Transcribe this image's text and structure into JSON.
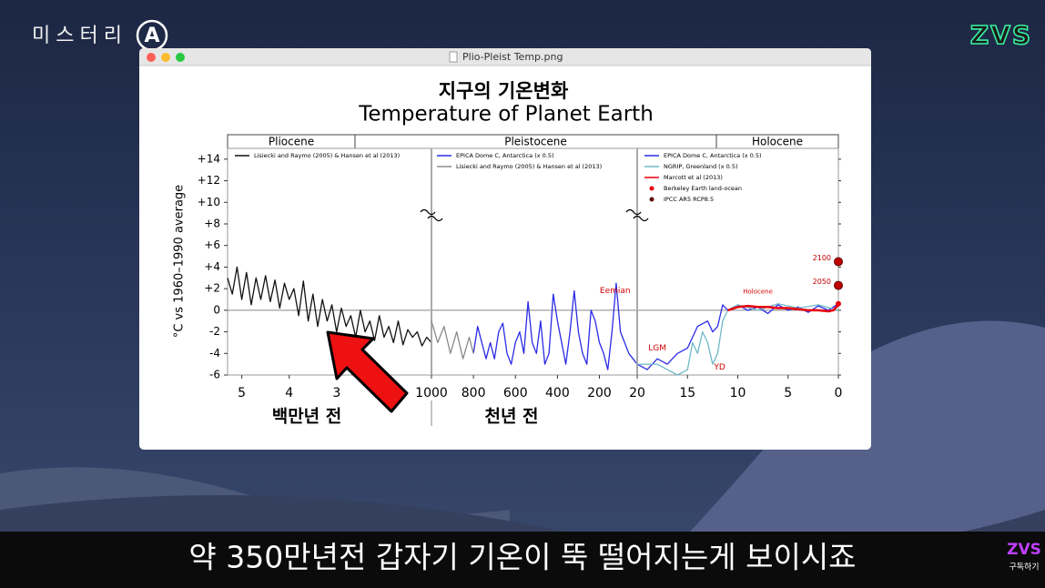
{
  "overlay": {
    "channel": "미스터리",
    "channel_badge": "A",
    "logo": "ZVS",
    "subscribe_logo": "ZVS",
    "subscribe_label": "구독하기",
    "caption": "약 350만년전 갑자기 기온이 뚝 떨어지는게 보이시죠"
  },
  "window": {
    "title": "Plio-Pleist Temp.png"
  },
  "chart_data": {
    "type": "line",
    "title": "지구의 기온변화",
    "subtitle": "Temperature of Planet Earth",
    "y_label": "°C vs 1960–1990 average",
    "epochs": [
      "Pliocene",
      "Pleistocene",
      "Holocene"
    ],
    "ylim": [
      -6,
      15
    ],
    "yticks": [
      {
        "value": 14,
        "label": "+14"
      },
      {
        "value": 12,
        "label": "+12"
      },
      {
        "value": 10,
        "label": "+10"
      },
      {
        "value": 8,
        "label": "+8"
      },
      {
        "value": 6,
        "label": "+6"
      },
      {
        "value": 4,
        "label": "+4"
      },
      {
        "value": 2,
        "label": "+2"
      },
      0,
      -2,
      -4,
      -6
    ],
    "panels": [
      {
        "x_label": "백만년 전",
        "xlim": [
          5.3,
          1.0
        ],
        "xticks": [
          5,
          4,
          3
        ],
        "series": [
          {
            "name": "Lisiecki and Raymo (2005) & Hansen et al (2013)",
            "color": "#111111",
            "x": [
              5.3,
              5.2,
              5.1,
              5.0,
              4.9,
              4.8,
              4.7,
              4.6,
              4.5,
              4.4,
              4.3,
              4.2,
              4.1,
              4.0,
              3.9,
              3.8,
              3.7,
              3.6,
              3.5,
              3.4,
              3.3,
              3.2,
              3.1,
              3.0,
              2.9,
              2.8,
              2.7,
              2.6,
              2.5,
              2.4,
              2.3,
              2.2,
              2.1,
              2.0,
              1.9,
              1.8,
              1.7,
              1.6,
              1.5,
              1.4,
              1.3,
              1.2,
              1.1,
              1.0
            ],
            "values": [
              3,
              1.5,
              4,
              1,
              3.5,
              0.5,
              3,
              1,
              3.2,
              0.8,
              2.8,
              0.2,
              2.5,
              1,
              2,
              -0.5,
              2.7,
              -1,
              1.5,
              -1.5,
              1,
              -1,
              0.5,
              -2,
              0.2,
              -1.5,
              -0.5,
              -2.5,
              0,
              -2,
              -1,
              -2.8,
              -0.5,
              -2.5,
              -1.5,
              -3,
              -1,
              -3.2,
              -1.8,
              -2.5,
              -2,
              -3.3,
              -2.5,
              -3
            ]
          }
        ]
      },
      {
        "x_label": "천년 전",
        "xlim": [
          1000,
          20
        ],
        "xticks": [
          1000,
          800,
          600,
          400,
          200
        ],
        "series": [
          {
            "name": "EPICA Dome C, Antarctica (x 0.5)",
            "color": "#2b2be6",
            "x": [
              800,
              780,
              760,
              740,
              720,
              700,
              680,
              660,
              640,
              620,
              600,
              580,
              560,
              540,
              520,
              500,
              480,
              460,
              440,
              420,
              400,
              380,
              360,
              340,
              320,
              300,
              280,
              260,
              240,
              220,
              200,
              180,
              160,
              140,
              120,
              100,
              80,
              60,
              40,
              20
            ],
            "values": [
              -4,
              -1.5,
              -3,
              -4.5,
              -3,
              -4.5,
              -2,
              -1.2,
              -4,
              -5,
              -3,
              -2,
              -4,
              0.8,
              -3,
              -4,
              -1,
              -5,
              -4,
              1.5,
              -1,
              -3,
              -5,
              -2,
              1.8,
              -2,
              -4,
              -5,
              0,
              -1,
              -3,
              -4,
              -5.5,
              -2,
              2.5,
              -2,
              -3,
              -4,
              -4.5,
              -5
            ]
          },
          {
            "name": "Lisiecki and Raymo (2005) & Hansen et al (2013)",
            "color": "#8a8a8a",
            "x": [
              1000,
              970,
              940,
              910,
              880,
              850,
              820,
              800
            ],
            "values": [
              -1,
              -3,
              -1.5,
              -4,
              -2,
              -4.5,
              -2.5,
              -4
            ]
          }
        ]
      },
      {
        "x_label": "",
        "xlim": [
          20,
          0
        ],
        "xticks": [
          20,
          15,
          10,
          5,
          0
        ],
        "series": [
          {
            "name": "EPICA Dome C, Antarctica (x 0.5)",
            "color": "#2b2be6",
            "x": [
              20,
              19,
              18,
              17,
              16,
              15,
              14.5,
              14,
              13,
              12.5,
              12,
              11.5,
              11,
              10,
              9,
              8,
              7,
              6,
              5,
              4,
              3,
              2,
              1,
              0.5,
              0
            ],
            "values": [
              -5,
              -5.5,
              -4.5,
              -5,
              -4,
              -3.5,
              -2.5,
              -1.5,
              -1,
              -2,
              -1.5,
              0.5,
              0,
              0.5,
              0,
              0.3,
              -0.3,
              0.5,
              0,
              0.3,
              -0.2,
              0.4,
              0,
              0.3,
              0.6
            ]
          },
          {
            "name": "NGRIP, Greenland (x 0.5)",
            "color": "#6fb8c8",
            "x": [
              20,
              18,
              17,
              16,
              15,
              14.5,
              14,
              13.5,
              13,
              12.5,
              12,
              11.5,
              11,
              10,
              8,
              6,
              4,
              2,
              0
            ],
            "values": [
              -5,
              -5,
              -5.5,
              -6,
              -5.5,
              -3,
              -4,
              -2,
              -3,
              -5,
              -4,
              -1,
              0,
              0.5,
              0,
              0.6,
              0.2,
              0.5,
              0
            ]
          },
          {
            "name": "Marcott et al (2013)",
            "color": "#e8000b",
            "x": [
              11,
              10,
              9,
              8,
              7,
              6,
              5,
              4,
              3,
              2,
              1,
              0.5,
              0
            ],
            "values": [
              0,
              0.3,
              0.4,
              0.3,
              0.3,
              0.2,
              0.2,
              0.1,
              0,
              0,
              -0.1,
              0,
              0.5
            ]
          },
          {
            "name": "Berkeley Earth land-ocean",
            "color": "#e8000b",
            "mode": "markers",
            "x": [
              0
            ],
            "values": [
              0.6
            ]
          },
          {
            "name": "IPCC AR5 RCP8.5",
            "color": "#5a0a0a",
            "mode": "markers",
            "x": [
              0,
              0
            ],
            "values": [
              2.3,
              4.5
            ],
            "point_labels": [
              "2050",
              "2100"
            ]
          }
        ],
        "annotations": [
          {
            "text": "Eemian",
            "x": 125,
            "y": 1.8,
            "panel": 1
          },
          {
            "text": "LGM",
            "x": 18,
            "y": -3.5,
            "panel": 2
          },
          {
            "text": "YD",
            "x": 11.8,
            "y": -5.3,
            "panel": 2
          },
          {
            "text": "Holocene",
            "x": 8,
            "y": 1.7,
            "panel": 2
          }
        ]
      }
    ]
  }
}
